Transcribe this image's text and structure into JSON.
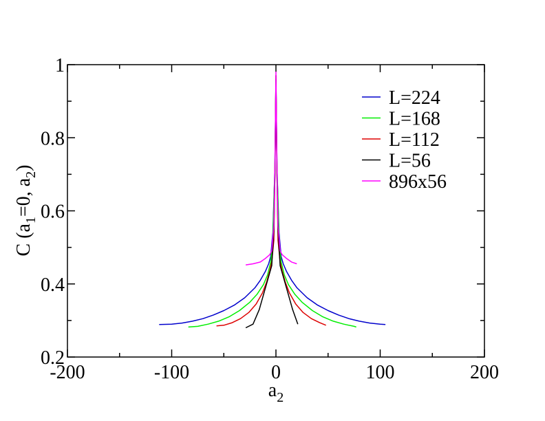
{
  "chart_data": {
    "type": "line",
    "title": "",
    "xlabel": {
      "main": "a",
      "sub": "2"
    },
    "ylabel": {
      "p1": "C (a",
      "s1": "1",
      "p2": "=0, a",
      "s2": "2",
      "p3": ")"
    },
    "xlim": [
      -200,
      200
    ],
    "ylim": [
      0.2,
      1.0
    ],
    "x_ticks": [
      -200,
      -100,
      0,
      100,
      200
    ],
    "x_tick_labels": [
      "-200",
      "-100",
      "0",
      "100",
      "200"
    ],
    "y_ticks": [
      0.2,
      0.4,
      0.6,
      0.8,
      1.0
    ],
    "y_tick_labels": [
      "0.2",
      "0.4",
      "0.6",
      "0.8",
      "1"
    ],
    "grid": false,
    "legend_position": "top-right",
    "series": [
      {
        "name": "L=224",
        "color": "#0000cc",
        "x": [
          -112,
          -100,
          -90,
          -80,
          -70,
          -60,
          -50,
          -40,
          -30,
          -20,
          -15,
          -10,
          -7,
          -5,
          -3,
          -1,
          0,
          1,
          3,
          5,
          7,
          10,
          15,
          20,
          30,
          40,
          50,
          60,
          70,
          80,
          90,
          100,
          105
        ],
        "y": [
          0.289,
          0.29,
          0.293,
          0.298,
          0.305,
          0.315,
          0.327,
          0.342,
          0.362,
          0.39,
          0.41,
          0.435,
          0.455,
          0.475,
          0.54,
          0.72,
          0.97,
          0.72,
          0.54,
          0.475,
          0.455,
          0.435,
          0.41,
          0.39,
          0.362,
          0.342,
          0.327,
          0.315,
          0.305,
          0.298,
          0.293,
          0.29,
          0.289
        ]
      },
      {
        "name": "L=168",
        "color": "#00ee00",
        "x": [
          -84,
          -75,
          -65,
          -55,
          -45,
          -35,
          -25,
          -18,
          -12,
          -8,
          -5,
          -3,
          -1,
          0,
          1,
          3,
          5,
          8,
          12,
          18,
          25,
          35,
          45,
          55,
          65,
          75,
          77
        ],
        "y": [
          0.282,
          0.284,
          0.29,
          0.298,
          0.31,
          0.327,
          0.35,
          0.372,
          0.398,
          0.425,
          0.46,
          0.52,
          0.72,
          0.97,
          0.72,
          0.52,
          0.46,
          0.425,
          0.398,
          0.372,
          0.35,
          0.327,
          0.31,
          0.298,
          0.29,
          0.284,
          0.282
        ]
      },
      {
        "name": "L=112",
        "color": "#dd0000",
        "x": [
          -57,
          -50,
          -42,
          -34,
          -26,
          -19,
          -13,
          -9,
          -6,
          -4,
          -2,
          -1,
          0,
          1,
          2,
          4,
          6,
          9,
          13,
          19,
          26,
          34,
          42,
          48
        ],
        "y": [
          0.285,
          0.287,
          0.294,
          0.305,
          0.322,
          0.345,
          0.375,
          0.405,
          0.435,
          0.46,
          0.52,
          0.7,
          0.97,
          0.7,
          0.52,
          0.46,
          0.435,
          0.405,
          0.375,
          0.345,
          0.322,
          0.305,
          0.294,
          0.287
        ]
      },
      {
        "name": "L=56",
        "color": "#000000",
        "x": [
          -29,
          -22,
          -16,
          -11,
          -7,
          -4,
          -2,
          -1,
          0,
          1,
          2,
          4,
          7,
          11,
          16,
          21
        ],
        "y": [
          0.28,
          0.29,
          0.33,
          0.38,
          0.42,
          0.45,
          0.55,
          0.7,
          0.96,
          0.7,
          0.55,
          0.45,
          0.42,
          0.38,
          0.33,
          0.29
        ]
      },
      {
        "name": "896x56",
        "color": "#ff00ff",
        "x": [
          -29,
          -22,
          -15,
          -10,
          -6,
          -4,
          -2,
          -1,
          0,
          1,
          2,
          4,
          6,
          10,
          15,
          20
        ],
        "y": [
          0.452,
          0.455,
          0.46,
          0.47,
          0.48,
          0.49,
          0.56,
          0.72,
          0.98,
          0.72,
          0.56,
          0.49,
          0.48,
          0.47,
          0.46,
          0.455
        ]
      }
    ]
  }
}
